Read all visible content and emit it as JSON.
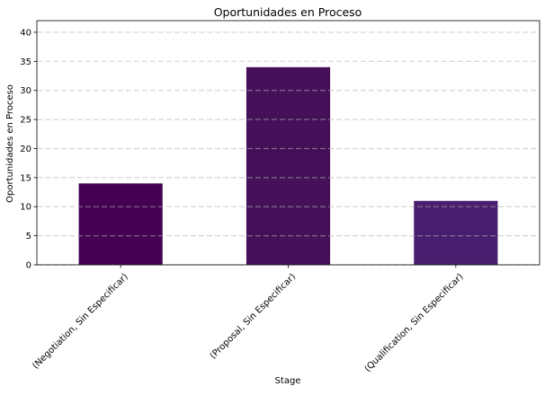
{
  "chart_data": {
    "type": "bar",
    "title": "Oportunidades en Proceso",
    "xlabel": "Stage",
    "ylabel": "Oportunidades en Proceso",
    "categories": [
      "(Negotiation, Sin Especificar)",
      "(Proposal, Sin Especificar)",
      "(Qualification, Sin Especificar)"
    ],
    "values": [
      14,
      34,
      11
    ],
    "ylim": [
      0,
      42
    ],
    "yticks": [
      0,
      5,
      10,
      15,
      20,
      25,
      30,
      35,
      40
    ],
    "bar_colors": [
      "#440154",
      "#461059",
      "#481e6f"
    ],
    "grid": true,
    "grid_color": "#b0b0b0",
    "legend": "none"
  }
}
